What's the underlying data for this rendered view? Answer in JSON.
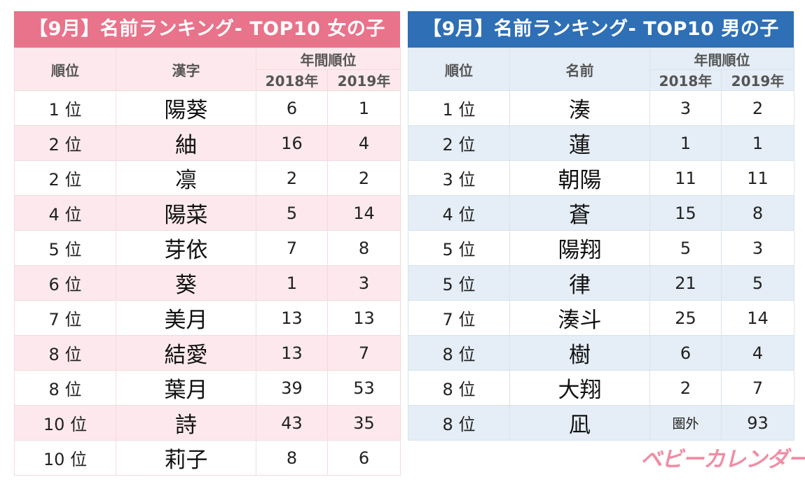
{
  "girls": {
    "title": "【9月】名前ランキング- TOP10 女の子",
    "headers": {
      "rank": "順位",
      "name": "漢字",
      "yearly": "年間順位",
      "y2018": "2018年",
      "y2019": "2019年"
    },
    "rows": [
      {
        "rank": "1 位",
        "name": "陽葵",
        "y2018": "6",
        "y2019": "1"
      },
      {
        "rank": "2 位",
        "name": "紬",
        "y2018": "16",
        "y2019": "4"
      },
      {
        "rank": "2 位",
        "name": "凛",
        "y2018": "2",
        "y2019": "2"
      },
      {
        "rank": "4 位",
        "name": "陽菜",
        "y2018": "5",
        "y2019": "14"
      },
      {
        "rank": "5 位",
        "name": "芽依",
        "y2018": "7",
        "y2019": "8"
      },
      {
        "rank": "6 位",
        "name": "葵",
        "y2018": "1",
        "y2019": "3"
      },
      {
        "rank": "7 位",
        "name": "美月",
        "y2018": "13",
        "y2019": "13"
      },
      {
        "rank": "8 位",
        "name": "結愛",
        "y2018": "13",
        "y2019": "7"
      },
      {
        "rank": "8 位",
        "name": "葉月",
        "y2018": "39",
        "y2019": "53"
      },
      {
        "rank": "10 位",
        "name": "詩",
        "y2018": "43",
        "y2019": "35"
      },
      {
        "rank": "10 位",
        "name": "莉子",
        "y2018": "8",
        "y2019": "6"
      }
    ]
  },
  "boys": {
    "title": "【9月】名前ランキング- TOP10 男の子",
    "headers": {
      "rank": "順位",
      "name": "名前",
      "yearly": "年間順位",
      "y2018": "2018年",
      "y2019": "2019年"
    },
    "rows": [
      {
        "rank": "1 位",
        "name": "湊",
        "y2018": "3",
        "y2019": "2"
      },
      {
        "rank": "2 位",
        "name": "蓮",
        "y2018": "1",
        "y2019": "1"
      },
      {
        "rank": "3 位",
        "name": "朝陽",
        "y2018": "11",
        "y2019": "11"
      },
      {
        "rank": "4 位",
        "name": "蒼",
        "y2018": "15",
        "y2019": "8"
      },
      {
        "rank": "5 位",
        "name": "陽翔",
        "y2018": "5",
        "y2019": "3"
      },
      {
        "rank": "5 位",
        "name": "律",
        "y2018": "21",
        "y2019": "5"
      },
      {
        "rank": "7 位",
        "name": "湊斗",
        "y2018": "25",
        "y2019": "14"
      },
      {
        "rank": "8 位",
        "name": "樹",
        "y2018": "6",
        "y2019": "4"
      },
      {
        "rank": "8 位",
        "name": "大翔",
        "y2018": "2",
        "y2019": "7"
      },
      {
        "rank": "8 位",
        "name": "凪",
        "y2018": "圏外",
        "y2019": "93"
      }
    ]
  },
  "brand": {
    "logo_text": "ベビーカレンダー"
  },
  "colors": {
    "girls_accent": "#e8738b",
    "boys_accent": "#2e6fb5",
    "girls_stripe": "#fde9ed",
    "boys_stripe": "#e5edf6",
    "logo": "#ef8ea5"
  }
}
